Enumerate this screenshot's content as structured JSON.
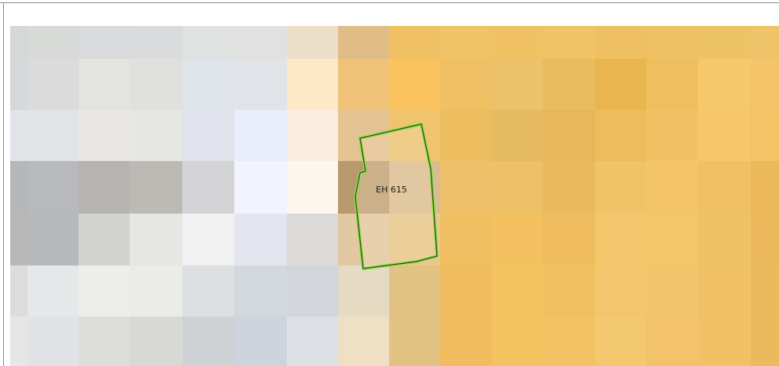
{
  "parcel": {
    "label": "EH 615"
  }
}
